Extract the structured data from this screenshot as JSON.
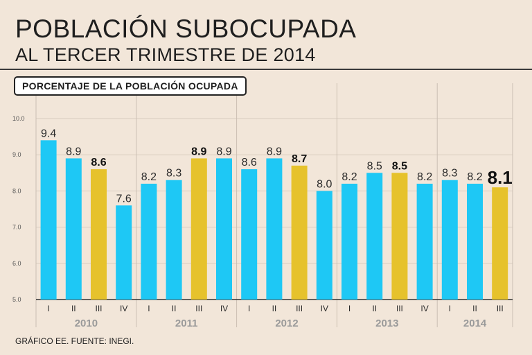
{
  "header": {
    "title": "POBLACIÓN SUBOCUPADA",
    "subtitle": "AL TERCER TRIMESTRE DE 2014"
  },
  "panel_label": "PORCENTAJE DE LA POBLACIÓN OCUPADA",
  "source": "GRÁFICO EE. FUENTE: INEGI.",
  "colors": {
    "bar_default": "#1ec8f5",
    "bar_highlight": "#e6c22c",
    "background": "#f2e6d9"
  },
  "chart_data": {
    "type": "bar",
    "title": "POBLACIÓN SUBOCUPADA",
    "subtitle": "AL TERCER TRIMESTRE DE 2014",
    "ylabel": "PORCENTAJE DE LA POBLACIÓN OCUPADA",
    "ylim": [
      5.0,
      10.0
    ],
    "yticks": [
      "5.0",
      "6.0",
      "7.0",
      "8.0",
      "9.0",
      "10.0"
    ],
    "years": [
      "2010",
      "2011",
      "2012",
      "2013",
      "2014"
    ],
    "grid": true,
    "bars": [
      {
        "year": "2010",
        "quarter": "I",
        "value": 9.4,
        "label": "9.4",
        "highlight": false
      },
      {
        "year": "2010",
        "quarter": "II",
        "value": 8.9,
        "label": "8.9",
        "highlight": false
      },
      {
        "year": "2010",
        "quarter": "III",
        "value": 8.6,
        "label": "8.6",
        "highlight": true
      },
      {
        "year": "2010",
        "quarter": "IV",
        "value": 7.6,
        "label": "7.6",
        "highlight": false
      },
      {
        "year": "2011",
        "quarter": "I",
        "value": 8.2,
        "label": "8.2",
        "highlight": false
      },
      {
        "year": "2011",
        "quarter": "II",
        "value": 8.3,
        "label": "8.3",
        "highlight": false
      },
      {
        "year": "2011",
        "quarter": "III",
        "value": 8.9,
        "label": "8.9",
        "highlight": true
      },
      {
        "year": "2011",
        "quarter": "IV",
        "value": 8.9,
        "label": "8.9",
        "highlight": false
      },
      {
        "year": "2012",
        "quarter": "I",
        "value": 8.6,
        "label": "8.6",
        "highlight": false
      },
      {
        "year": "2012",
        "quarter": "II",
        "value": 8.9,
        "label": "8.9",
        "highlight": false
      },
      {
        "year": "2012",
        "quarter": "III",
        "value": 8.7,
        "label": "8.7",
        "highlight": true
      },
      {
        "year": "2012",
        "quarter": "IV",
        "value": 8.0,
        "label": "8.0",
        "highlight": false
      },
      {
        "year": "2013",
        "quarter": "I",
        "value": 8.2,
        "label": "8.2",
        "highlight": false
      },
      {
        "year": "2013",
        "quarter": "II",
        "value": 8.5,
        "label": "8.5",
        "highlight": false
      },
      {
        "year": "2013",
        "quarter": "III",
        "value": 8.5,
        "label": "8.5",
        "highlight": true
      },
      {
        "year": "2013",
        "quarter": "IV",
        "value": 8.2,
        "label": "8.2",
        "highlight": false
      },
      {
        "year": "2014",
        "quarter": "I",
        "value": 8.3,
        "label": "8.3",
        "highlight": false
      },
      {
        "year": "2014",
        "quarter": "II",
        "value": 8.2,
        "label": "8.2",
        "highlight": false
      },
      {
        "year": "2014",
        "quarter": "III",
        "value": 8.1,
        "label": "8.1",
        "highlight": true
      }
    ]
  }
}
